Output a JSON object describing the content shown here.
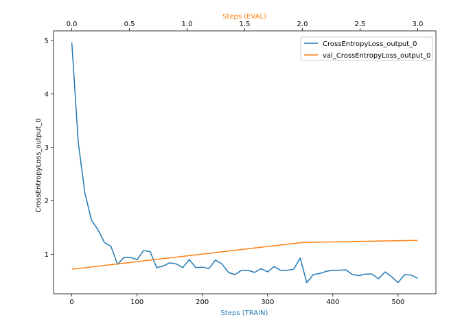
{
  "chart_data": {
    "type": "line",
    "title": "",
    "xlabel": "Steps (TRAIN)",
    "x2label": "Steps (EVAL)",
    "ylabel": "CrossEntropyLoss_output_0",
    "xlim": [
      -28,
      558
    ],
    "x2lim": [
      -0.158,
      3.158
    ],
    "ylim": [
      0.26,
      5.18
    ],
    "xticks": [
      0,
      100,
      200,
      300,
      400,
      500
    ],
    "xtick_labels": [
      "0",
      "100",
      "200",
      "300",
      "400",
      "500"
    ],
    "x2ticks": [
      0.0,
      0.5,
      1.0,
      1.5,
      2.0,
      2.5,
      3.0
    ],
    "x2tick_labels": [
      "0.0",
      "0.5",
      "1.0",
      "1.5",
      "2.0",
      "2.5",
      "3.0"
    ],
    "yticks": [
      1,
      2,
      3,
      4,
      5
    ],
    "ytick_labels": [
      "1",
      "2",
      "3",
      "4",
      "5"
    ],
    "grid": false,
    "legend_position": "top-right",
    "colors": {
      "axis_bottom": "#1f77b4",
      "axis_top": "#ff7f0e",
      "frame": "#000000"
    },
    "series": [
      {
        "name": "CrossEntropyLoss_output_0",
        "axis": "bottom",
        "color": "#1f77b4",
        "x": [
          0,
          10,
          20,
          30,
          40,
          50,
          60,
          70,
          80,
          90,
          100,
          110,
          120,
          130,
          140,
          150,
          160,
          170,
          180,
          190,
          200,
          210,
          220,
          230,
          240,
          250,
          260,
          270,
          280,
          290,
          300,
          310,
          320,
          330,
          340,
          350,
          360,
          370,
          380,
          390,
          400,
          410,
          420,
          430,
          440,
          450,
          460,
          470,
          480,
          490,
          500,
          510,
          520,
          530
        ],
        "y": [
          4.96,
          3.08,
          2.15,
          1.64,
          1.46,
          1.22,
          1.15,
          0.81,
          0.94,
          0.94,
          0.9,
          1.07,
          1.05,
          0.75,
          0.78,
          0.84,
          0.82,
          0.75,
          0.9,
          0.75,
          0.76,
          0.73,
          0.89,
          0.82,
          0.66,
          0.62,
          0.7,
          0.7,
          0.66,
          0.73,
          0.67,
          0.77,
          0.7,
          0.7,
          0.72,
          0.93,
          0.47,
          0.62,
          0.64,
          0.68,
          0.7,
          0.7,
          0.71,
          0.62,
          0.6,
          0.63,
          0.63,
          0.54,
          0.67,
          0.58,
          0.47,
          0.62,
          0.61,
          0.55
        ]
      },
      {
        "name": "val_CrossEntropyLoss_output_0",
        "axis": "top",
        "color": "#ff7f0e",
        "x": [
          0.0,
          2.0,
          3.0
        ],
        "y": [
          0.72,
          1.22,
          1.26
        ]
      }
    ]
  }
}
